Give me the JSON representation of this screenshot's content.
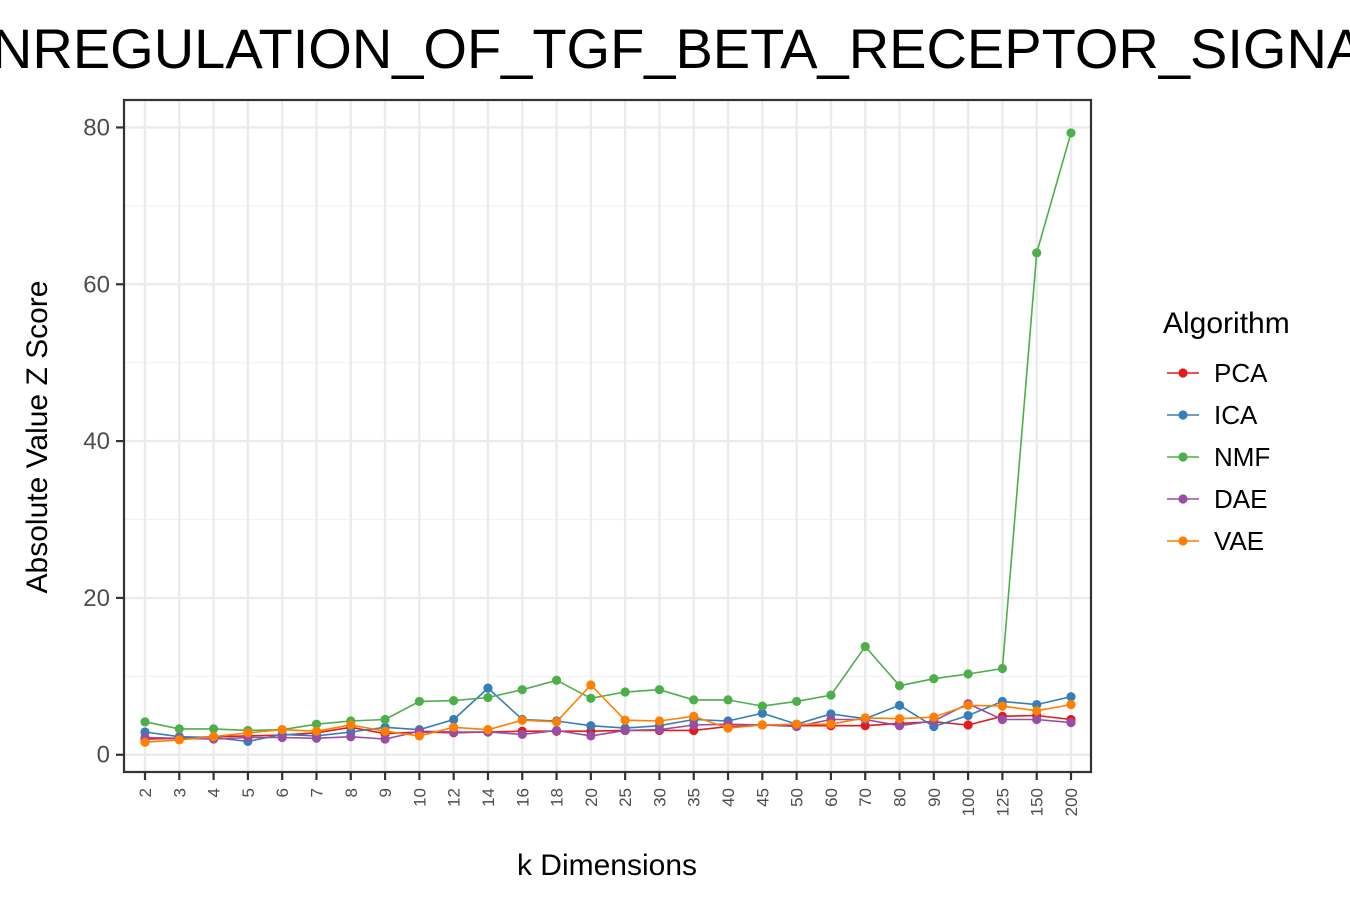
{
  "chart_data": {
    "type": "line",
    "title": "DOWNREGULATION_OF_TGF_BETA_RECEPTOR_SIGNALING",
    "xlabel": "k Dimensions",
    "ylabel": "Absolute Value Z Score",
    "ylim": [
      -2.2,
      83.5
    ],
    "yticks": [
      0,
      20,
      40,
      60,
      80
    ],
    "grid": true,
    "legend_title": "Algorithm",
    "legend_position": "right",
    "categories": [
      "2",
      "3",
      "4",
      "5",
      "6",
      "7",
      "8",
      "9",
      "10",
      "12",
      "14",
      "16",
      "18",
      "20",
      "25",
      "30",
      "35",
      "40",
      "45",
      "50",
      "60",
      "70",
      "80",
      "90",
      "100",
      "125",
      "150",
      "200"
    ],
    "series": [
      {
        "name": "PCA",
        "color": "#E41A1C",
        "values": [
          2.0,
          2.1,
          2.3,
          2.4,
          2.5,
          2.8,
          3.5,
          2.7,
          2.9,
          2.8,
          2.9,
          3.0,
          3.0,
          3.0,
          3.1,
          3.1,
          3.1,
          3.6,
          3.8,
          3.7,
          3.7,
          3.7,
          4.0,
          4.2,
          3.8,
          4.9,
          5.0,
          4.5
        ]
      },
      {
        "name": "ICA",
        "color": "#377EB8",
        "values": [
          2.9,
          2.3,
          2.2,
          1.7,
          2.6,
          2.4,
          2.9,
          3.5,
          3.2,
          4.5,
          8.5,
          4.5,
          4.3,
          3.7,
          3.4,
          3.7,
          4.5,
          4.3,
          5.3,
          3.9,
          5.2,
          4.6,
          6.3,
          3.6,
          5.0,
          6.8,
          6.4,
          7.4
        ]
      },
      {
        "name": "NMF",
        "color": "#4DAF4A",
        "values": [
          4.2,
          3.3,
          3.3,
          3.1,
          3.2,
          3.9,
          4.3,
          4.5,
          6.8,
          6.9,
          7.3,
          8.3,
          9.5,
          7.2,
          8.0,
          8.3,
          7.0,
          7.0,
          6.2,
          6.8,
          7.6,
          13.8,
          8.8,
          9.7,
          10.3,
          11.0,
          64.0,
          79.3
        ]
      },
      {
        "name": "DAE",
        "color": "#984EA3",
        "values": [
          2.2,
          2.1,
          2.0,
          2.2,
          2.2,
          2.1,
          2.3,
          2.0,
          3.0,
          2.9,
          2.9,
          2.6,
          3.1,
          2.4,
          3.1,
          3.2,
          3.8,
          3.9,
          3.8,
          3.6,
          4.5,
          4.5,
          3.7,
          4.3,
          6.5,
          4.5,
          4.5,
          4.1
        ]
      },
      {
        "name": "VAE",
        "color": "#FF7F00",
        "values": [
          1.6,
          1.9,
          2.3,
          2.8,
          3.2,
          3.0,
          3.8,
          3.0,
          2.4,
          3.5,
          3.2,
          4.4,
          4.2,
          8.9,
          4.4,
          4.3,
          4.9,
          3.4,
          3.8,
          3.9,
          3.9,
          4.7,
          4.6,
          4.8,
          6.3,
          6.2,
          5.6,
          6.4
        ]
      }
    ]
  }
}
